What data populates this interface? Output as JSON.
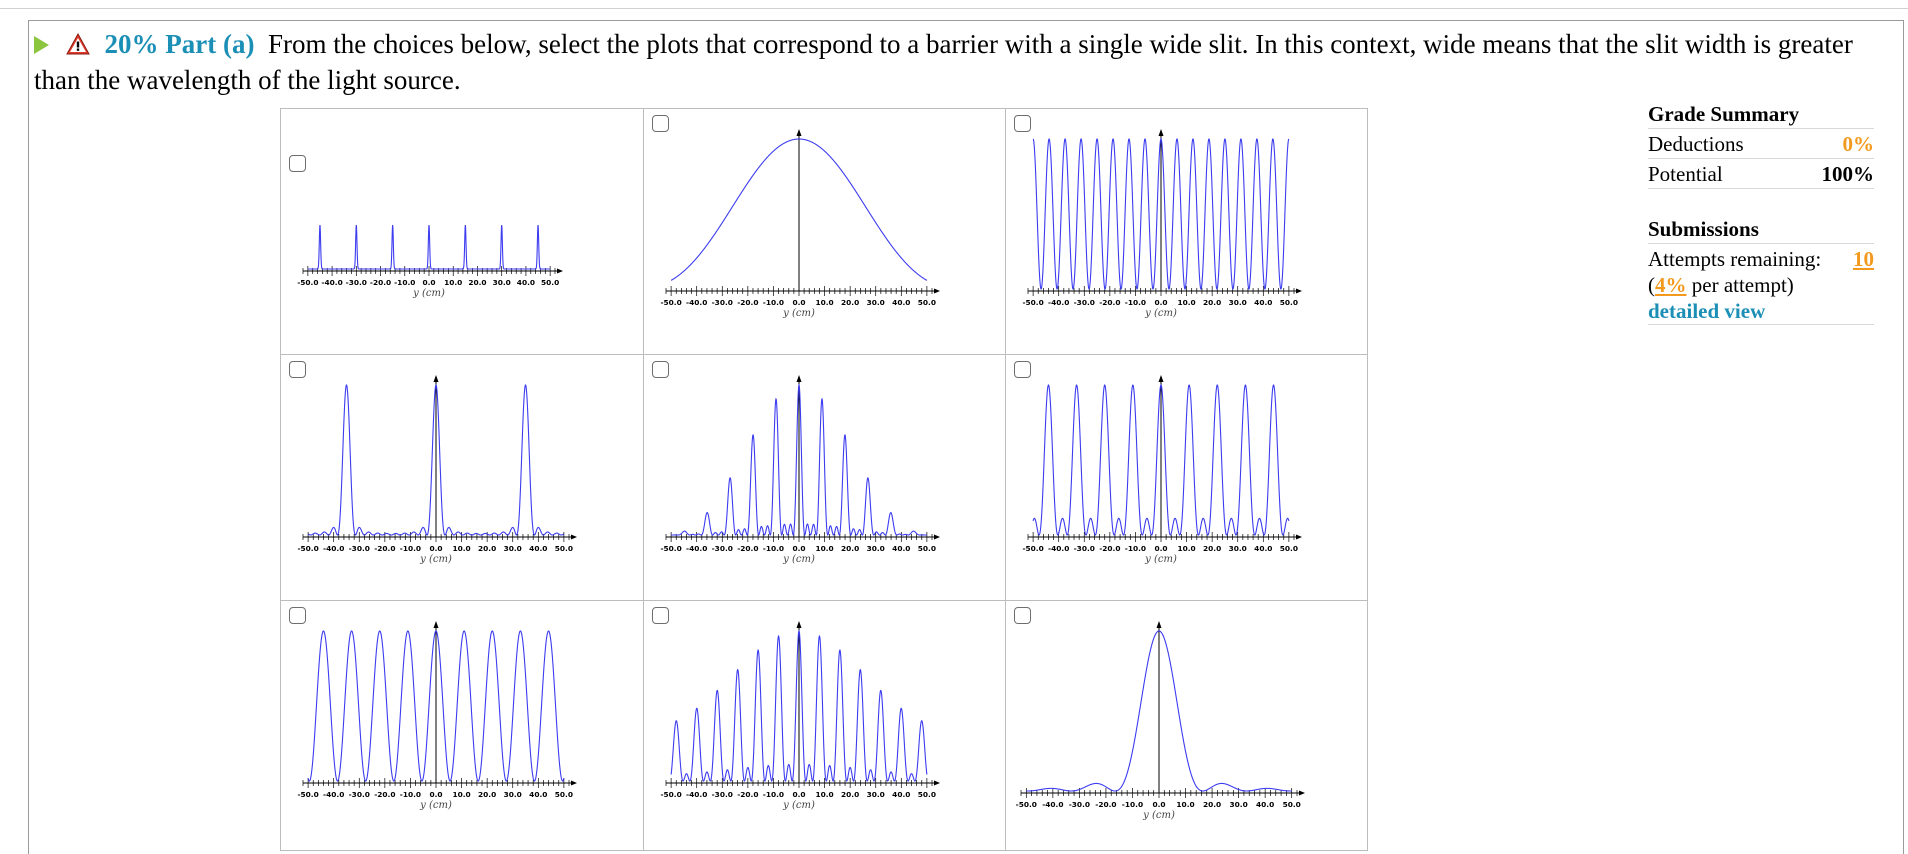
{
  "question": {
    "percent": "20%",
    "part_label": "Part (a)",
    "prompt": "From the choices below, select the plots that correspond to a barrier with a single wide slit. In this context, wide means that the slit width is greater than the wavelength of the light source."
  },
  "choices": {
    "axis_label": "y (cm)",
    "x_ticks": [
      "-50.0",
      "-40.0",
      "-30.0",
      "-20.0",
      "-10.0",
      "0.0",
      "10.0",
      "20.0",
      "30.0",
      "40.0",
      "50.0"
    ],
    "options": [
      {
        "pattern": "narrow-peaks"
      },
      {
        "pattern": "single-broad-peak"
      },
      {
        "pattern": "dense-fringes"
      },
      {
        "pattern": "grating-three-peaks"
      },
      {
        "pattern": "multi-slit-envelope"
      },
      {
        "pattern": "five-peaks-secondary"
      },
      {
        "pattern": "double-slit-fringes"
      },
      {
        "pattern": "multi-slit-complex"
      },
      {
        "pattern": "single-slit-diffraction"
      }
    ]
  },
  "summary": {
    "grade_title": "Grade Summary",
    "deductions_label": "Deductions",
    "deductions_value": "0%",
    "potential_label": "Potential",
    "potential_value": "100%",
    "submissions_title": "Submissions",
    "attempts_label": "Attempts remaining:",
    "attempts_value": "10",
    "per_attempt_open": "(",
    "per_attempt_value": "4%",
    "per_attempt_text": " per attempt)",
    "detailed_view": "detailed view"
  },
  "colors": {
    "curve": "#3c3cf0",
    "accent": "#1b8fb5",
    "orange": "#f39a1e"
  }
}
